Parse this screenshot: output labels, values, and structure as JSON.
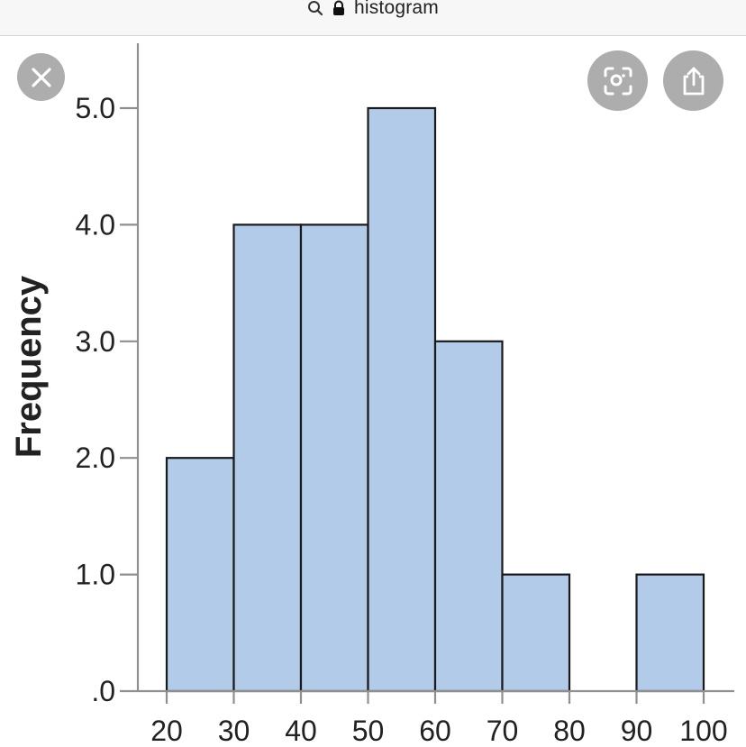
{
  "url_bar": {
    "text": "histogram",
    "search_icon": "search-icon",
    "lock_icon": "lock-icon"
  },
  "overlay_buttons": {
    "close_icon": "close-icon",
    "lens_icon": "visual-lookup-icon",
    "share_icon": "share-icon"
  },
  "colors": {
    "bar_fill": "#b1cbe9",
    "bar_stroke": "#1a1a1a",
    "axis": "#8f8f8f",
    "text": "#222222"
  },
  "chart_data": {
    "type": "bar",
    "title": "",
    "xlabel": "",
    "ylabel": "Frequency",
    "bins": [
      {
        "start": 20,
        "end": 30,
        "value": 2
      },
      {
        "start": 30,
        "end": 40,
        "value": 4
      },
      {
        "start": 40,
        "end": 50,
        "value": 4
      },
      {
        "start": 50,
        "end": 60,
        "value": 5
      },
      {
        "start": 60,
        "end": 70,
        "value": 3
      },
      {
        "start": 70,
        "end": 80,
        "value": 1
      },
      {
        "start": 80,
        "end": 90,
        "value": 0
      },
      {
        "start": 90,
        "end": 100,
        "value": 1
      }
    ],
    "x_ticks": [
      "20",
      "30",
      "40",
      "50",
      "60",
      "70",
      "80",
      "90",
      "100"
    ],
    "y_ticks": [
      {
        "value": 0,
        "label": ".0"
      },
      {
        "value": 1,
        "label": "1.0"
      },
      {
        "value": 2,
        "label": "2.0"
      },
      {
        "value": 3,
        "label": "3.0"
      },
      {
        "value": 4,
        "label": "4.0"
      },
      {
        "value": 5,
        "label": "5.0"
      }
    ],
    "xlim": [
      18,
      108
    ],
    "ylim": [
      0,
      5.5
    ],
    "grid": false,
    "legend": "none"
  }
}
